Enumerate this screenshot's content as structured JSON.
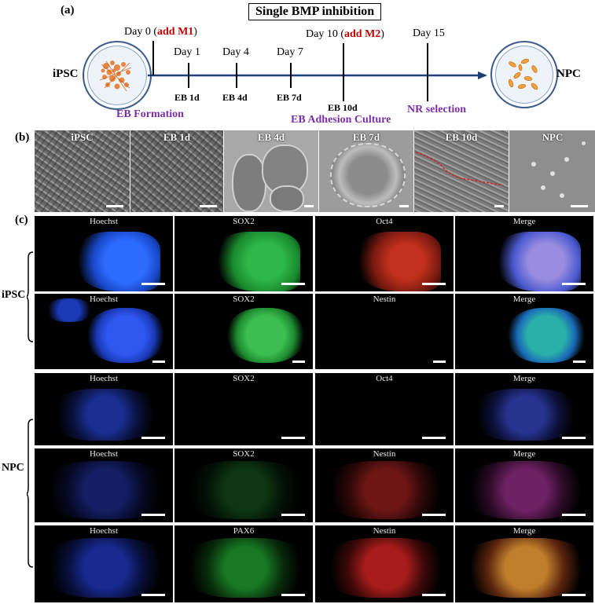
{
  "panel_a": {
    "letter": "(a)",
    "title": "Single BMP inhibition",
    "left_label": "iPSC",
    "right_label": "NPC",
    "day0_text": "Day 0 (",
    "day0_add": "add M1",
    "day0_close": ")",
    "day1": "Day 1",
    "day4": "Day 4",
    "day7": "Day 7",
    "day10_text": "Day 10 (",
    "day10_add": "add M2",
    "day10_close": ")",
    "day15": "Day 15",
    "eb1": "EB 1d",
    "eb4": "EB 4d",
    "eb7": "EB 7d",
    "eb10": "EB 10d",
    "nr_selection": "NR selection",
    "eb_formation": "EB Formation",
    "eb_adhesion": "EB Adhesion Culture"
  },
  "panel_b": {
    "letter": "(b)",
    "images": [
      "iPSC",
      "EB 1d",
      "EB 4d",
      "EB 7d",
      "EB 10d",
      "NPC"
    ]
  },
  "panel_c": {
    "letter": "(c)",
    "group_ipsc": "iPSC",
    "group_npc": "NPC",
    "rows": [
      [
        "Hoechst",
        "SOX2",
        "Oct4",
        "Merge"
      ],
      [
        "Hoechst",
        "SOX2",
        "Nestin",
        "Merge"
      ],
      [
        "Hoechst",
        "SOX2",
        "Oct4",
        "Merge"
      ],
      [
        "Hoechst",
        "SOX2",
        "Nestin",
        "Merge"
      ],
      [
        "Hoechst",
        "PAX6",
        "Nestin",
        "Merge"
      ]
    ]
  },
  "colors": {
    "accent_red": "#c00000",
    "accent_purple": "#7b2fa8",
    "timeline_blue": "#1f3f7a"
  }
}
